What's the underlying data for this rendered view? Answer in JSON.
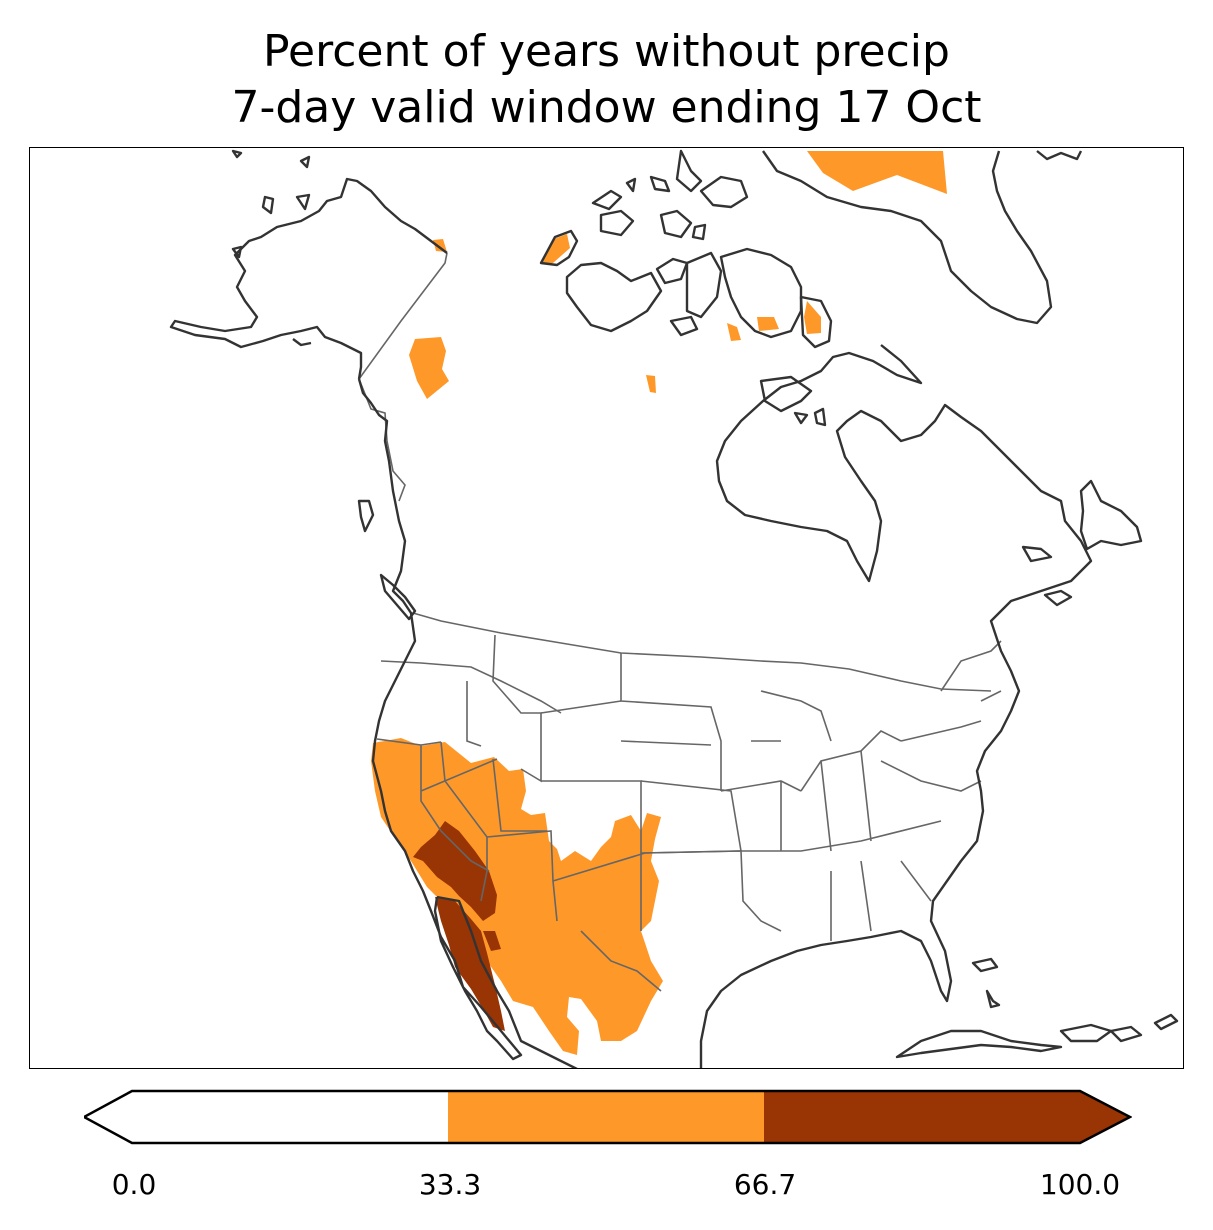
{
  "title": {
    "line1": "Percent of years without precip",
    "line2": "7-day valid window ending 17 Oct"
  },
  "legend": {
    "ticks": [
      "0.0",
      "33.3",
      "66.7",
      "100.0"
    ],
    "bins": [
      {
        "range": [
          0.0,
          33.3
        ],
        "color": "#ffffff"
      },
      {
        "range": [
          33.3,
          66.7
        ],
        "color": "#fe9929"
      },
      {
        "range": [
          66.7,
          100.0
        ],
        "color": "#993404"
      }
    ],
    "extend": "both"
  },
  "colors": {
    "coastline": "#333333",
    "borders": "#666666",
    "low": "#ffffff",
    "mid": "#fe9929",
    "high": "#993404"
  }
}
